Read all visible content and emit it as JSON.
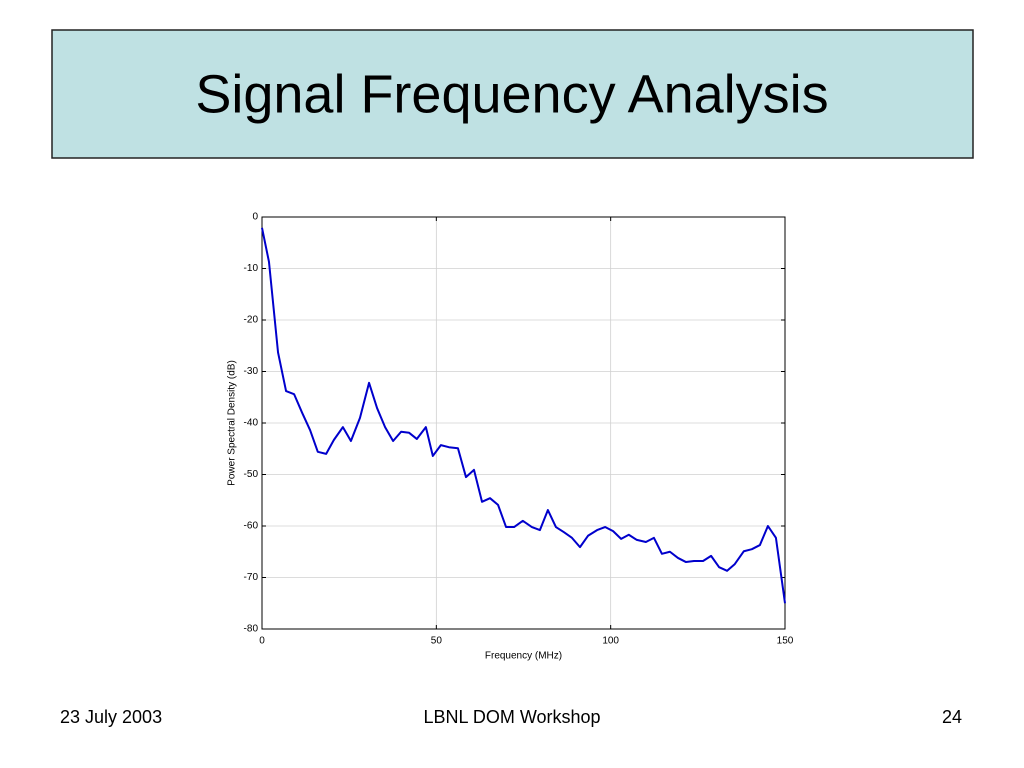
{
  "slide": {
    "title": "Signal Frequency Analysis",
    "footer_left": "23 July 2003",
    "footer_center": "LBNL DOM Workshop",
    "footer_right": "24"
  },
  "chart_data": {
    "type": "line",
    "xlabel": "Frequency (MHz)",
    "ylabel": "Power Spectral Density (dB)",
    "x": [
      0,
      2,
      4.6,
      6.9,
      9.2,
      11.5,
      13.8,
      16,
      18.4,
      20.6,
      23.2,
      25.5,
      28.1,
      30.7,
      33,
      35.3,
      37.6,
      39.9,
      42.2,
      44.4,
      47,
      49,
      51.3,
      53.6,
      56.2,
      58.5,
      60.8,
      63.1,
      65.4,
      67.7,
      70,
      72.3,
      74.8,
      77.4,
      79.7,
      82,
      84.3,
      86.6,
      88.9,
      91.2,
      93.5,
      96.1,
      98.4,
      100.7,
      103,
      105.2,
      107.5,
      110.1,
      112.4,
      114.7,
      117,
      119.3,
      121.6,
      123.9,
      126.5,
      128.8,
      131.1,
      133.4,
      135.6,
      138.2,
      140.5,
      142.8,
      145.1,
      147.4,
      150
    ],
    "values": [
      -2.1,
      -8.7,
      -26.3,
      -33.8,
      -34.4,
      -38,
      -41.4,
      -45.6,
      -46,
      -43.3,
      -40.8,
      -43.5,
      -39,
      -32.2,
      -37.1,
      -40.8,
      -43.5,
      -41.7,
      -41.9,
      -43.1,
      -40.8,
      -46.4,
      -44.3,
      -44.7,
      -44.9,
      -50.5,
      -49.1,
      -55.3,
      -54.6,
      -55.9,
      -60.2,
      -60.2,
      -59,
      -60.2,
      -60.8,
      -56.9,
      -60.2,
      -61.2,
      -62.3,
      -64.1,
      -61.9,
      -60.8,
      -60.2,
      -61,
      -62.5,
      -61.7,
      -62.7,
      -63.1,
      -62.3,
      -65.4,
      -65,
      -66.2,
      -67,
      -66.8,
      -66.8,
      -65.8,
      -68,
      -68.7,
      -67.4,
      -64.9,
      -64.5,
      -63.7,
      -60,
      -62.3,
      -75
    ],
    "color": "#0000cc",
    "xlim": [
      0,
      150
    ],
    "xticks": [
      0,
      50,
      100,
      150
    ],
    "ylim": [
      -80,
      0
    ],
    "yticks": [
      0,
      -10,
      -20,
      -30,
      -40,
      -50,
      -60,
      -70,
      -80
    ],
    "grid": true
  }
}
